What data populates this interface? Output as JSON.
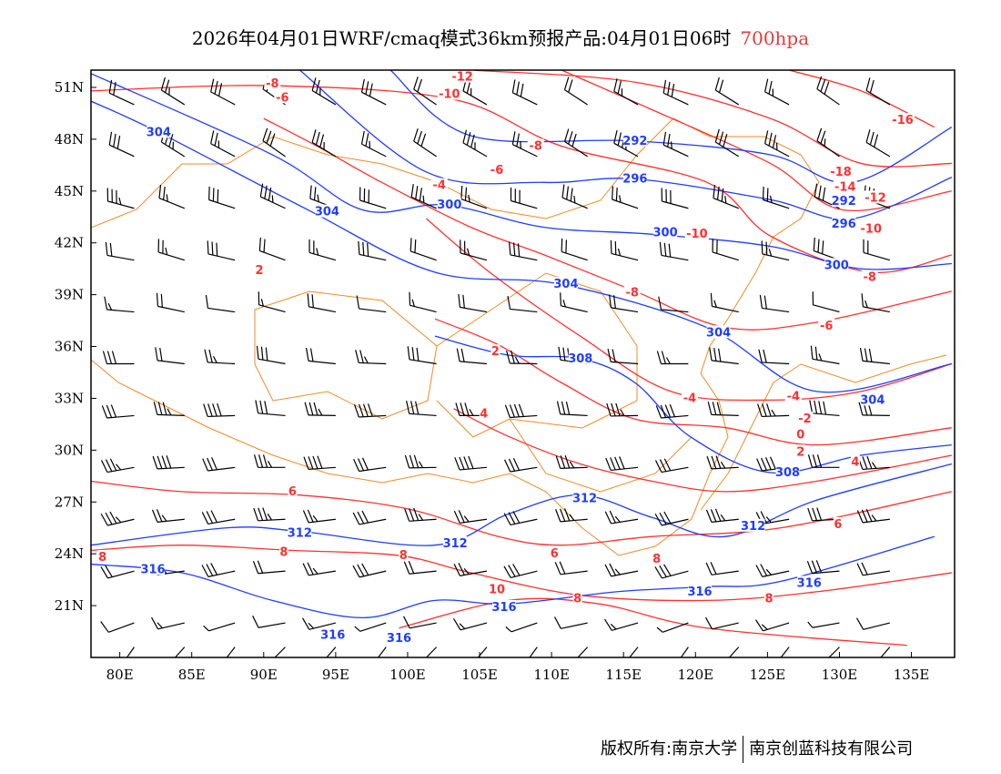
{
  "title": {
    "main": "2026年04月01日WRF/cmaq模式36km预报产品:04月01日06时",
    "level": "700hpa"
  },
  "footer": {
    "left": "版权所有:南京大学",
    "right": "南京创蓝科技有限公司"
  },
  "colors": {
    "height": "#1f3cff",
    "temperature": "#ff3030",
    "boundary": "#f08a24",
    "wind": "#000000"
  },
  "chart_data": {
    "type": "map",
    "extent": {
      "lon": [
        78,
        138
      ],
      "lat": [
        18,
        52
      ]
    },
    "x_ticks": [
      "80E",
      "85E",
      "90E",
      "95E",
      "100E",
      "105E",
      "110E",
      "115E",
      "120E",
      "125E",
      "130E",
      "135E"
    ],
    "x_tick_values": [
      80,
      85,
      90,
      95,
      100,
      105,
      110,
      115,
      120,
      125,
      130,
      135
    ],
    "y_ticks": [
      "51N",
      "48N",
      "45N",
      "42N",
      "39N",
      "36N",
      "33N",
      "30N",
      "27N",
      "24N",
      "21N"
    ],
    "y_tick_values": [
      51,
      48,
      45,
      42,
      39,
      36,
      33,
      30,
      27,
      24,
      21
    ],
    "height_contours": [
      {
        "value": 292,
        "points": [
          [
            98.8,
            52
          ],
          [
            104.4,
            48.2
          ],
          [
            115.8,
            47.9
          ],
          [
            125.2,
            47.1
          ],
          [
            130.9,
            45.5
          ],
          [
            137.8,
            48.7
          ]
        ]
      },
      {
        "value": 296,
        "points": [
          [
            92.5,
            52
          ],
          [
            101.3,
            46.1
          ],
          [
            109.5,
            45.5
          ],
          [
            115.8,
            45.7
          ],
          [
            125.2,
            44.5
          ],
          [
            130.9,
            43.4
          ],
          [
            137.8,
            45.8
          ]
        ]
      },
      {
        "value": 300,
        "points": [
          [
            78,
            51.8
          ],
          [
            90.6,
            47.1
          ],
          [
            96.9,
            43.9
          ],
          [
            102.6,
            44.2
          ],
          [
            109.5,
            42.9
          ],
          [
            117,
            42.5
          ],
          [
            125.2,
            41.8
          ],
          [
            131.5,
            40.5
          ],
          [
            137.8,
            40.8
          ]
        ]
      },
      {
        "value": 304,
        "points": [
          [
            78,
            50.2
          ],
          [
            82.7,
            48.4
          ],
          [
            93.1,
            43.9
          ],
          [
            101.9,
            40.3
          ],
          [
            110.7,
            39.6
          ],
          [
            120.8,
            37.1
          ],
          [
            128.4,
            33.4
          ],
          [
            137.8,
            35
          ]
        ]
      },
      {
        "value": 308,
        "points": [
          [
            101.9,
            36.6
          ],
          [
            107,
            35.5
          ],
          [
            112,
            35.3
          ],
          [
            115.8,
            33.9
          ],
          [
            119.6,
            30.8
          ],
          [
            125.2,
            28.7
          ],
          [
            131.5,
            29.7
          ],
          [
            137.8,
            30.3
          ]
        ]
      },
      {
        "value": 312,
        "points": [
          [
            78,
            24.5
          ],
          [
            87.4,
            25.5
          ],
          [
            92.5,
            25.3
          ],
          [
            101.9,
            24.5
          ],
          [
            107,
            26.3
          ],
          [
            112,
            27.4
          ],
          [
            117,
            26.1
          ],
          [
            122.1,
            25
          ],
          [
            128.4,
            27.1
          ],
          [
            137.8,
            29.2
          ]
        ]
      },
      {
        "value": 316,
        "points": [
          [
            78,
            23.4
          ],
          [
            84.3,
            22.9
          ],
          [
            90.6,
            21.3
          ],
          [
            96.9,
            20.3
          ],
          [
            101.9,
            21.3
          ],
          [
            107,
            21.1
          ],
          [
            114.5,
            21.8
          ],
          [
            120.8,
            22.1
          ],
          [
            125.9,
            22.4
          ],
          [
            136.6,
            25
          ]
        ]
      }
    ],
    "temperature_contours": [
      {
        "value": -16,
        "points": [
          [
            126.5,
            52
          ],
          [
            131.5,
            50.8
          ],
          [
            136.6,
            48.7
          ]
        ]
      },
      {
        "value": -12,
        "points": [
          [
            104.4,
            52
          ],
          [
            115.8,
            51.3
          ],
          [
            125.2,
            49.2
          ],
          [
            131.5,
            46.6
          ],
          [
            137.8,
            46.6
          ]
        ]
      },
      {
        "value": -10,
        "points": [
          [
            110.7,
            52
          ],
          [
            117,
            49.7
          ],
          [
            125.2,
            46.6
          ],
          [
            130.3,
            43.9
          ],
          [
            137.8,
            45
          ]
        ]
      },
      {
        "value": -8,
        "points": [
          [
            78,
            50.8
          ],
          [
            90.6,
            51.1
          ],
          [
            103.2,
            50.3
          ],
          [
            110.7,
            47.6
          ],
          [
            120.8,
            45.5
          ],
          [
            125.2,
            42.4
          ],
          [
            132.2,
            40.3
          ],
          [
            137.8,
            41.3
          ]
        ]
      },
      {
        "value": -6,
        "points": [
          [
            90,
            49.2
          ],
          [
            93.7,
            47.6
          ],
          [
            98.2,
            45.5
          ],
          [
            104.4,
            42.9
          ],
          [
            109.5,
            41.3
          ],
          [
            115.8,
            39.2
          ],
          [
            122.1,
            37.1
          ],
          [
            128.4,
            37.4
          ],
          [
            137.8,
            39.2
          ]
        ]
      },
      {
        "value": -4,
        "points": [
          [
            101.3,
            43.4
          ],
          [
            105.7,
            40.3
          ],
          [
            112,
            36.6
          ],
          [
            118.3,
            33.4
          ],
          [
            125.2,
            32.9
          ],
          [
            131.5,
            33.4
          ],
          [
            137.8,
            35
          ]
        ]
      },
      {
        "value": 2,
        "points": [
          [
            101.9,
            37.6
          ],
          [
            106.3,
            36.1
          ],
          [
            110.7,
            33.9
          ],
          [
            115.8,
            31.8
          ],
          [
            122.1,
            31.3
          ],
          [
            128.4,
            30.3
          ],
          [
            137.8,
            31.3
          ]
        ]
      },
      {
        "value": 4,
        "points": [
          [
            103.2,
            32.4
          ],
          [
            107,
            30.8
          ],
          [
            112,
            29.2
          ],
          [
            117,
            28.2
          ],
          [
            122.1,
            27.6
          ],
          [
            128.4,
            28.2
          ],
          [
            137.8,
            29.7
          ]
        ]
      },
      {
        "value": 6,
        "points": [
          [
            78,
            28.2
          ],
          [
            84.3,
            27.6
          ],
          [
            92.5,
            27.4
          ],
          [
            100,
            26.6
          ],
          [
            106.3,
            25
          ],
          [
            110.7,
            24.5
          ],
          [
            117,
            25
          ],
          [
            125.9,
            25.5
          ],
          [
            137.8,
            27.6
          ]
        ]
      },
      {
        "value": 8,
        "points": [
          [
            78,
            24.2
          ],
          [
            84.3,
            24.5
          ],
          [
            91.9,
            24.2
          ],
          [
            99.4,
            23.9
          ],
          [
            104.4,
            22.9
          ],
          [
            112,
            21.6
          ],
          [
            120.8,
            21.3
          ],
          [
            128.4,
            21.8
          ],
          [
            137.8,
            22.9
          ]
        ]
      },
      {
        "value": 10,
        "points": [
          [
            99.4,
            19.7
          ],
          [
            107,
            21.3
          ],
          [
            113.3,
            21.1
          ],
          [
            120.8,
            19.7
          ],
          [
            134.7,
            18.7
          ]
        ]
      }
    ],
    "height_labels": [
      {
        "text": "304",
        "lon": 82.7,
        "lat": 48.4
      },
      {
        "text": "304",
        "lon": 94.4,
        "lat": 43.8
      },
      {
        "text": "300",
        "lon": 102.9,
        "lat": 44.2
      },
      {
        "text": "292",
        "lon": 115.8,
        "lat": 47.9
      },
      {
        "text": "296",
        "lon": 115.8,
        "lat": 45.7
      },
      {
        "text": "300",
        "lon": 117.9,
        "lat": 42.6
      },
      {
        "text": "304",
        "lon": 111,
        "lat": 39.6
      },
      {
        "text": "300",
        "lon": 129.8,
        "lat": 40.7
      },
      {
        "text": "304",
        "lon": 121.6,
        "lat": 36.8
      },
      {
        "text": "308",
        "lon": 112,
        "lat": 35.3
      },
      {
        "text": "304",
        "lon": 132.3,
        "lat": 32.9
      },
      {
        "text": "308",
        "lon": 126.4,
        "lat": 28.7
      },
      {
        "text": "312",
        "lon": 112.3,
        "lat": 27.2
      },
      {
        "text": "312",
        "lon": 92.5,
        "lat": 25.2
      },
      {
        "text": "312",
        "lon": 103.3,
        "lat": 24.6
      },
      {
        "text": "312",
        "lon": 124,
        "lat": 25.6
      },
      {
        "text": "316",
        "lon": 82.3,
        "lat": 23.1
      },
      {
        "text": "316",
        "lon": 127.9,
        "lat": 22.3
      },
      {
        "text": "316",
        "lon": 120.3,
        "lat": 21.8
      },
      {
        "text": "316",
        "lon": 106.7,
        "lat": 20.9
      },
      {
        "text": "316",
        "lon": 94.8,
        "lat": 19.3
      },
      {
        "text": "316",
        "lon": 99.4,
        "lat": 19.1
      },
      {
        "text": "292",
        "lon": 130.3,
        "lat": 44.4
      },
      {
        "text": "296",
        "lon": 130.3,
        "lat": 43.1
      }
    ],
    "temperature_labels": [
      {
        "text": "-8",
        "lon": 90.6,
        "lat": 51.2
      },
      {
        "text": "-6",
        "lon": 91.3,
        "lat": 50.4
      },
      {
        "text": "-12",
        "lon": 103.8,
        "lat": 51.6
      },
      {
        "text": "-10",
        "lon": 102.9,
        "lat": 50.6
      },
      {
        "text": "-8",
        "lon": 108.9,
        "lat": 47.6
      },
      {
        "text": "-6",
        "lon": 106.2,
        "lat": 46.2
      },
      {
        "text": "-4",
        "lon": 102.2,
        "lat": 44.9
      },
      {
        "text": "2",
        "lon": 89.7,
        "lat": 40.4
      },
      {
        "text": "-8",
        "lon": 115.6,
        "lat": 39.1
      },
      {
        "text": "-10",
        "lon": 120.1,
        "lat": 42.5
      },
      {
        "text": "-16",
        "lon": 134.4,
        "lat": 49.1
      },
      {
        "text": "-18",
        "lon": 130.1,
        "lat": 46.1
      },
      {
        "text": "-14",
        "lon": 130.4,
        "lat": 44.8
      },
      {
        "text": "-12",
        "lon": 132.5,
        "lat": 44.6
      },
      {
        "text": "-10",
        "lon": 132.2,
        "lat": 42.8
      },
      {
        "text": "-8",
        "lon": 132.1,
        "lat": 40
      },
      {
        "text": "-6",
        "lon": 129.1,
        "lat": 37.2
      },
      {
        "text": "-4",
        "lon": 119.6,
        "lat": 33
      },
      {
        "text": "-4",
        "lon": 126.8,
        "lat": 33.1
      },
      {
        "text": "-2",
        "lon": 127.6,
        "lat": 31.8
      },
      {
        "text": "0",
        "lon": 127.3,
        "lat": 30.9
      },
      {
        "text": "2",
        "lon": 127.3,
        "lat": 29.9
      },
      {
        "text": "4",
        "lon": 131.1,
        "lat": 29.3
      },
      {
        "text": "2",
        "lon": 106.1,
        "lat": 35.7
      },
      {
        "text": "4",
        "lon": 105.3,
        "lat": 32.1
      },
      {
        "text": "6",
        "lon": 92,
        "lat": 27.6
      },
      {
        "text": "8",
        "lon": 78.8,
        "lat": 23.8
      },
      {
        "text": "8",
        "lon": 91.4,
        "lat": 24.1
      },
      {
        "text": "8",
        "lon": 99.7,
        "lat": 23.9
      },
      {
        "text": "6",
        "lon": 110.2,
        "lat": 24
      },
      {
        "text": "8",
        "lon": 117.3,
        "lat": 23.7
      },
      {
        "text": "6",
        "lon": 129.9,
        "lat": 25.7
      },
      {
        "text": "8",
        "lon": 125.1,
        "lat": 21.4
      },
      {
        "text": "8",
        "lon": 111.8,
        "lat": 21.4
      },
      {
        "text": "10",
        "lon": 106.2,
        "lat": 21.5
      }
    ],
    "wind_barbs": {
      "lats": [
        50,
        47,
        44,
        41,
        38,
        35,
        32,
        29,
        26,
        23,
        20,
        18.6
      ],
      "lons": [
        81,
        84.5,
        88,
        91.5,
        95,
        98.5,
        102,
        105.5,
        109,
        112.5,
        116,
        119.5,
        123,
        126.5,
        130,
        133.5
      ],
      "direction_by_lat": [
        300,
        300,
        290,
        285,
        280,
        275,
        270,
        265,
        262,
        260,
        255,
        220
      ],
      "speed_by_lat": [
        20,
        25,
        25,
        20,
        15,
        20,
        30,
        30,
        25,
        20,
        10,
        6
      ]
    }
  }
}
